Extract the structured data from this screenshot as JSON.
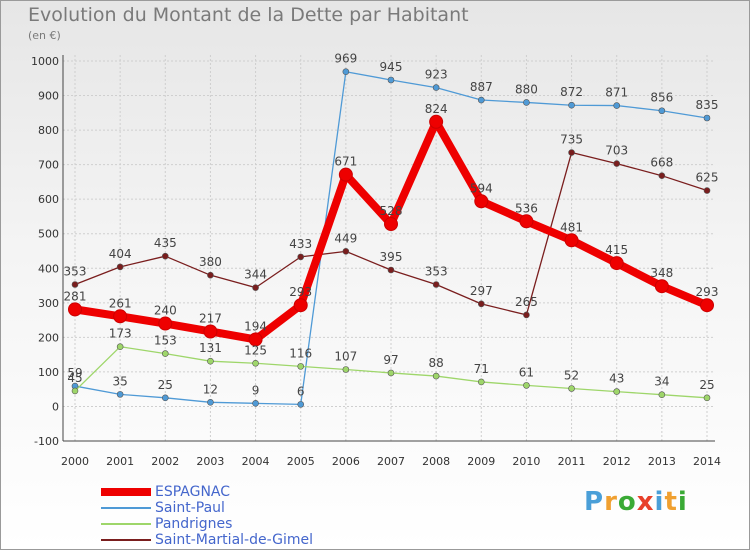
{
  "header": {
    "title": "Evolution du Montant de la Dette par Habitant",
    "unit": "(en €)"
  },
  "logo": {
    "text": "Proxiti",
    "colors": [
      "#4a9fd8",
      "#f0a030",
      "#3aaa35",
      "#e8402a",
      "#4a9fd8",
      "#f0a030",
      "#3aaa35"
    ]
  },
  "chart_data": {
    "type": "line",
    "title": "Evolution du Montant de la Dette par Habitant",
    "ylabel": "(en €)",
    "xlabel": "",
    "x": [
      "2000",
      "2001",
      "2002",
      "2003",
      "2004",
      "2005",
      "2006",
      "2007",
      "2008",
      "2009",
      "2010",
      "2011",
      "2012",
      "2013",
      "2014"
    ],
    "ylim": [
      -100,
      1000
    ],
    "yticks": [
      -100,
      0,
      100,
      200,
      300,
      400,
      500,
      600,
      700,
      800,
      900,
      1000
    ],
    "grid": true,
    "legend_position": "bottom-left",
    "series": [
      {
        "name": "ESPAGNAC",
        "color": "#ee0000",
        "values": [
          281,
          261,
          240,
          217,
          194,
          293,
          671,
          528,
          824,
          594,
          536,
          481,
          415,
          348,
          293
        ]
      },
      {
        "name": "Saint-Paul",
        "color": "#4f9ad6",
        "values": [
          59,
          35,
          25,
          12,
          9,
          6,
          969,
          945,
          923,
          887,
          880,
          872,
          871,
          856,
          835
        ]
      },
      {
        "name": "Pandrignes",
        "color": "#9ed66a",
        "values": [
          45,
          173,
          153,
          131,
          125,
          116,
          107,
          97,
          88,
          71,
          61,
          52,
          43,
          34,
          25
        ]
      },
      {
        "name": "Saint-Martial-de-Gimel",
        "color": "#7a1e1e",
        "values": [
          353,
          404,
          435,
          380,
          344,
          433,
          449,
          395,
          353,
          297,
          265,
          735,
          703,
          668,
          625
        ]
      }
    ]
  }
}
